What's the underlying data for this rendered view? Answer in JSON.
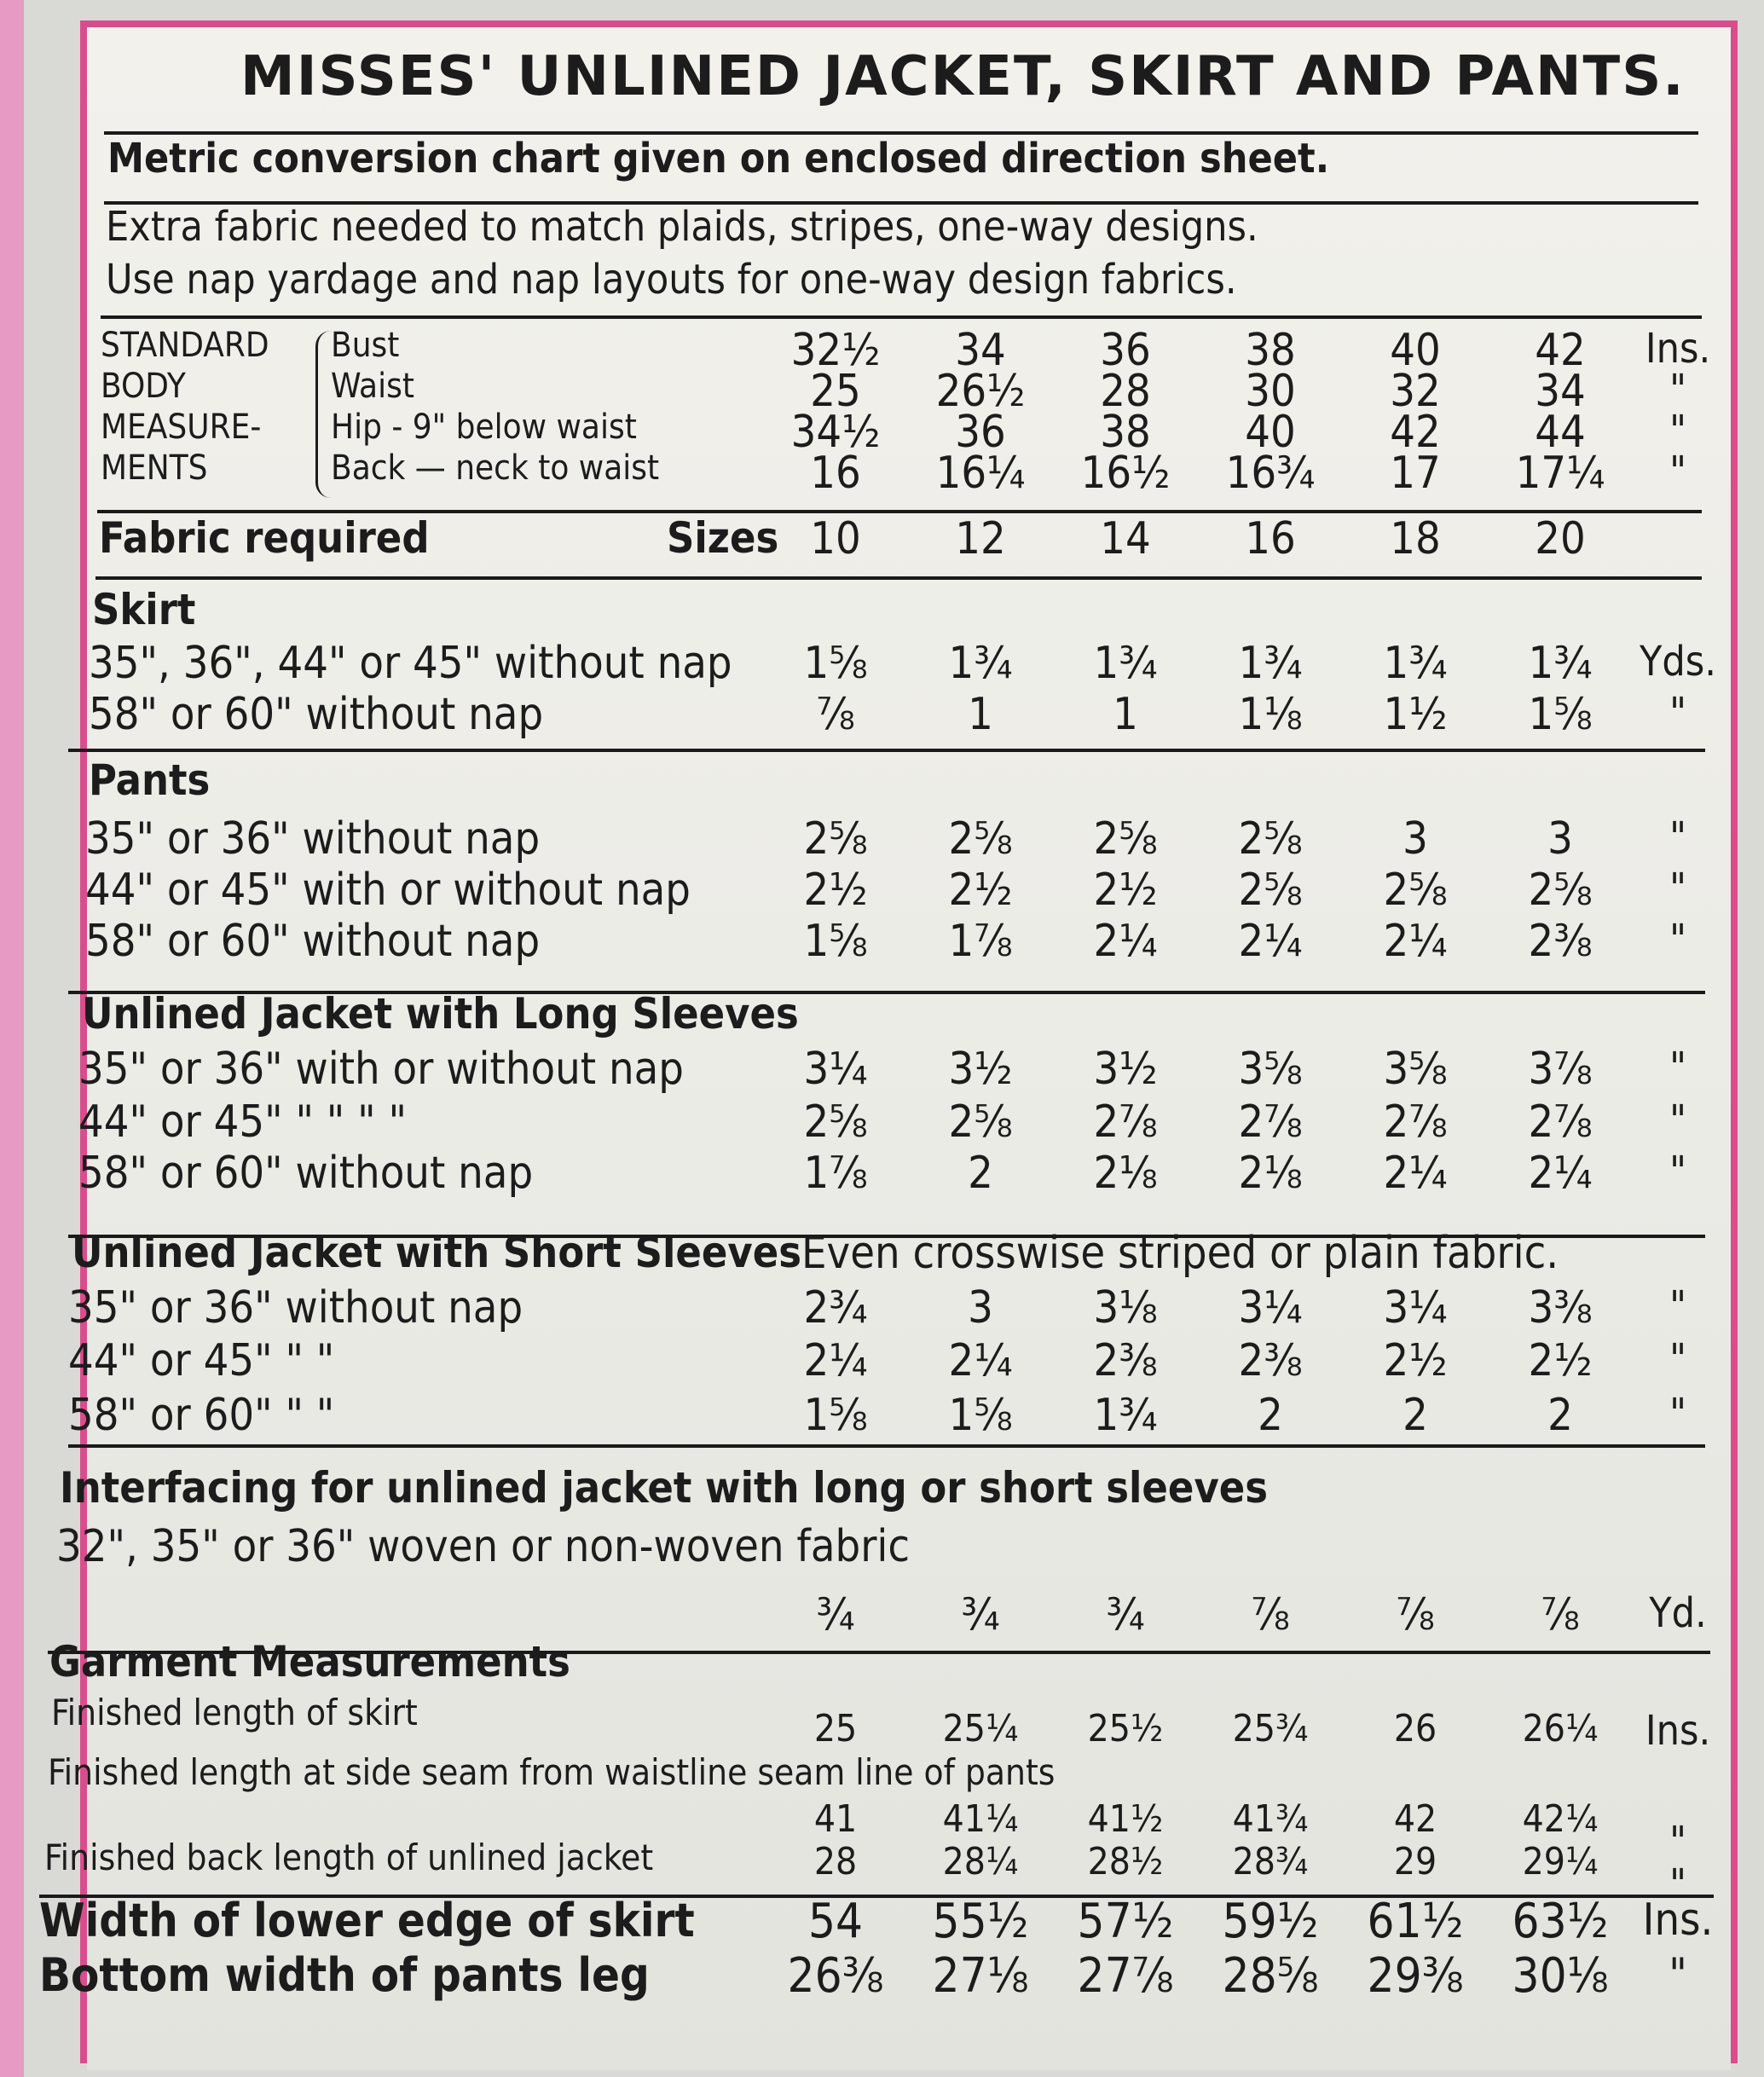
{
  "title": "MISSES' UNLINED JACKET, SKIRT AND PANTS.",
  "metric_note": "Metric conversion chart given on enclosed direction sheet.",
  "extra_note_1": "Extra fabric needed to match plaids, stripes, one-way designs.",
  "extra_note_2": "Use nap yardage and nap layouts for one-way design fabrics.",
  "standard": {
    "label_lines": [
      "STANDARD",
      "BODY",
      "MEASURE-",
      "MENTS"
    ],
    "rows": [
      {
        "label": "Bust",
        "values": [
          "32½",
          "34",
          "36",
          "38",
          "40",
          "42"
        ],
        "unit": "Ins."
      },
      {
        "label": "Waist",
        "values": [
          "25",
          "26½",
          "28",
          "30",
          "32",
          "34"
        ],
        "unit": "\""
      },
      {
        "label": "Hip - 9\" below waist",
        "values": [
          "34½",
          "36",
          "38",
          "40",
          "42",
          "44"
        ],
        "unit": "\""
      },
      {
        "label": "Back — neck to waist",
        "values": [
          "16",
          "16¼",
          "16½",
          "16¾",
          "17",
          "17¼"
        ],
        "unit": "\""
      }
    ]
  },
  "fabric_required": "Fabric required",
  "sizes_label": "Sizes",
  "sizes": [
    "10",
    "12",
    "14",
    "16",
    "18",
    "20"
  ],
  "sections": [
    {
      "heading": "Skirt",
      "rows": [
        {
          "label": "35\", 36\", 44\" or 45\" without nap",
          "values": [
            "1⅝",
            "1¾",
            "1¾",
            "1¾",
            "1¾",
            "1¾"
          ],
          "unit": "Yds."
        },
        {
          "label": "58\" or 60\" without nap",
          "values": [
            "⅞",
            "1",
            "1",
            "1⅛",
            "1½",
            "1⅝"
          ],
          "unit": "\""
        }
      ]
    },
    {
      "heading": "Pants",
      "rows": [
        {
          "label": "35\" or 36\" without nap",
          "values": [
            "2⅝",
            "2⅝",
            "2⅝",
            "2⅝",
            "3",
            "3"
          ],
          "unit": "\""
        },
        {
          "label": "44\" or 45\" with or without nap",
          "values": [
            "2½",
            "2½",
            "2½",
            "2⅝",
            "2⅝",
            "2⅝"
          ],
          "unit": "\""
        },
        {
          "label": "58\" or 60\" without nap",
          "values": [
            "1⅝",
            "1⅞",
            "2¼",
            "2¼",
            "2¼",
            "2⅜"
          ],
          "unit": "\""
        }
      ]
    },
    {
      "heading": "Unlined Jacket with Long Sleeves",
      "rows": [
        {
          "label": "35\" or 36\" with or without nap",
          "values": [
            "3¼",
            "3½",
            "3½",
            "3⅝",
            "3⅝",
            "3⅞"
          ],
          "unit": "\""
        },
        {
          "label": "44\" or 45\"   \"   \"     \"      \"",
          "values": [
            "2⅝",
            "2⅝",
            "2⅞",
            "2⅞",
            "2⅞",
            "2⅞"
          ],
          "unit": "\""
        },
        {
          "label": "58\" or 60\" without nap",
          "values": [
            "1⅞",
            "2",
            "2⅛",
            "2⅛",
            "2¼",
            "2¼"
          ],
          "unit": "\""
        }
      ]
    },
    {
      "heading": "Unlined Jacket with Short Sleeves",
      "heading_note": "Even crosswise striped or plain fabric.",
      "rows": [
        {
          "label": "35\" or 36\" without nap",
          "values": [
            "2¾",
            "3",
            "3⅛",
            "3¼",
            "3¼",
            "3⅜"
          ],
          "unit": "\""
        },
        {
          "label": "44\" or 45\"       \"        \"",
          "values": [
            "2¼",
            "2¼",
            "2⅜",
            "2⅜",
            "2½",
            "2½"
          ],
          "unit": "\""
        },
        {
          "label": "58\" or 60\"       \"        \"",
          "values": [
            "1⅝",
            "1⅝",
            "1¾",
            "2",
            "2",
            "2"
          ],
          "unit": "\""
        }
      ]
    }
  ],
  "interfacing": {
    "heading": "Interfacing for unlined jacket with long or short sleeves",
    "label": "32\", 35\" or 36\" woven or non-woven fabric",
    "values": [
      "¾",
      "¾",
      "¾",
      "⅞",
      "⅞",
      "⅞"
    ],
    "unit": "Yd."
  },
  "garment": {
    "heading": "Garment Measurements",
    "rows": [
      {
        "label": "Finished length of skirt",
        "values": [
          "25",
          "25¼",
          "25½",
          "25¾",
          "26",
          "26¼"
        ],
        "unit": "Ins."
      },
      {
        "label": "Finished length at side seam from waistline seam line of pants",
        "values": [
          "41",
          "41¼",
          "41½",
          "41¾",
          "42",
          "42¼"
        ],
        "unit": "\""
      },
      {
        "label": "Finished back length of unlined jacket",
        "values": [
          "28",
          "28¼",
          "28½",
          "28¾",
          "29",
          "29¼"
        ],
        "unit": "\""
      }
    ]
  },
  "widths": [
    {
      "label": "Width of lower edge of skirt",
      "values": [
        "54",
        "55½",
        "57½",
        "59½",
        "61½",
        "63½"
      ],
      "unit": "Ins."
    },
    {
      "label": "Bottom width of pants leg",
      "values": [
        "26⅜",
        "27⅛",
        "27⅞",
        "28⅝",
        "29⅜",
        "30⅛"
      ],
      "unit": "\""
    }
  ]
}
